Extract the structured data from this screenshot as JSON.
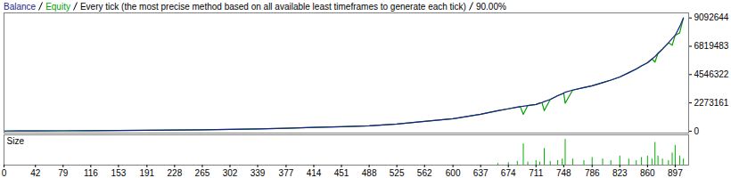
{
  "chart_data": [
    {
      "type": "line",
      "title": "Every tick (the most precise method based on all available least timeframes to generate each tick)",
      "subtitle": "90.00%",
      "x": [
        0,
        20,
        42,
        79,
        116,
        153,
        191,
        228,
        265,
        302,
        339,
        377,
        414,
        451,
        488,
        525,
        562,
        600,
        637,
        660,
        674,
        686,
        690,
        694,
        700,
        711,
        716,
        719,
        722,
        730,
        740,
        746,
        748,
        750,
        760,
        775,
        786,
        800,
        811,
        823,
        835,
        845,
        852,
        860,
        866,
        870,
        874,
        880,
        888,
        893,
        897,
        903,
        908
      ],
      "series": [
        {
          "name": "Balance",
          "color": "#1e1e8c",
          "values": [
            10000,
            14000,
            20000,
            30000,
            42000,
            55000,
            72000,
            90000,
            115000,
            145000,
            185000,
            240000,
            300000,
            360000,
            430000,
            570000,
            790000,
            1000000,
            1360000,
            1650000,
            1800000,
            1930000,
            1970000,
            2010000,
            2060000,
            2150000,
            2250000,
            2300000,
            2380000,
            2550000,
            2850000,
            3000000,
            3060000,
            3130000,
            3300000,
            3500000,
            3650000,
            3900000,
            4100000,
            4350000,
            4700000,
            5000000,
            5250000,
            5500000,
            5800000,
            6000000,
            6250000,
            6600000,
            7100000,
            7450000,
            7700000,
            8400000,
            9092644
          ]
        },
        {
          "name": "Equity",
          "color": "#00a000",
          "values": [
            10000,
            14000,
            20000,
            30000,
            42000,
            55000,
            72000,
            90000,
            115000,
            145000,
            185000,
            240000,
            300000,
            360000,
            430000,
            570000,
            790000,
            1000000,
            1360000,
            1650000,
            1800000,
            1930000,
            1970000,
            1350000,
            2060000,
            2150000,
            2250000,
            2300000,
            1650000,
            2550000,
            2850000,
            3000000,
            3060000,
            2250000,
            3300000,
            3500000,
            3650000,
            3900000,
            4100000,
            4350000,
            4700000,
            5000000,
            5250000,
            5500000,
            5800000,
            5550000,
            6250000,
            6600000,
            7100000,
            6900000,
            7700000,
            7900000,
            9092644
          ]
        }
      ],
      "xlim": [
        0,
        915
      ],
      "xticks": [
        0,
        42,
        79,
        116,
        153,
        191,
        228,
        265,
        302,
        339,
        377,
        414,
        451,
        488,
        525,
        562,
        600,
        637,
        674,
        711,
        748,
        786,
        823,
        860,
        897
      ],
      "ylim": [
        -150000,
        9500000
      ],
      "yticks": [
        0,
        2273161,
        4546322,
        6819483,
        9092644
      ],
      "tick_labels": "y",
      "grid": false
    },
    {
      "type": "bar",
      "title": "Size",
      "x": [
        660,
        674,
        686,
        694,
        700,
        711,
        716,
        722,
        730,
        740,
        746,
        750,
        760,
        775,
        786,
        800,
        811,
        823,
        835,
        845,
        852,
        860,
        866,
        870,
        874,
        880,
        888,
        893,
        897,
        903,
        908
      ],
      "values": [
        0.5,
        0.8,
        1.2,
        7,
        1,
        1.5,
        1,
        5.5,
        1.2,
        1.5,
        2,
        8.5,
        2,
        1.5,
        2.5,
        2,
        1.5,
        3,
        2,
        1.5,
        2.5,
        3,
        2,
        7.5,
        3,
        2,
        1.5,
        4,
        6.5,
        3,
        2
      ],
      "color": "#00b000",
      "xlim": [
        0,
        915
      ],
      "xticks": [
        0,
        42,
        79,
        116,
        153,
        191,
        228,
        265,
        302,
        339,
        377,
        414,
        451,
        488,
        525,
        562,
        600,
        637,
        674,
        711,
        748,
        786,
        823,
        860,
        897
      ],
      "ylim": [
        0,
        10
      ],
      "tick_labels": "x",
      "grid": false
    }
  ]
}
